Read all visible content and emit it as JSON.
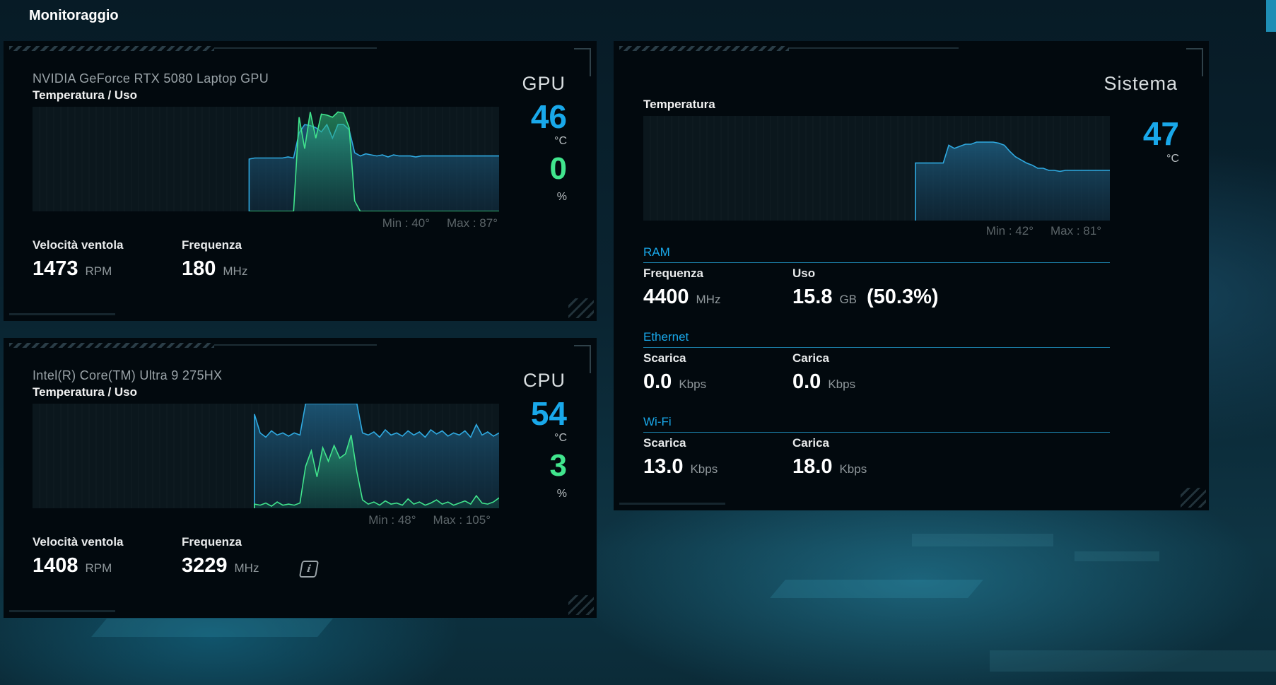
{
  "page": {
    "title": "Monitoraggio"
  },
  "colors": {
    "accent_blue": "#19a8ea",
    "accent_green": "#41e58d",
    "panel_bg": "#02090e"
  },
  "gpu": {
    "name": "NVIDIA GeForce RTX 5080 Laptop GPU",
    "chart_label": "Temperatura / Uso",
    "label": "GPU",
    "temperature": "46",
    "temp_unit": "°C",
    "usage": "0",
    "usage_unit": "%",
    "min": "Min : 40°",
    "max": "Max : 87°",
    "fan_label": "Velocità ventola",
    "fan_value": "1473",
    "fan_unit": "RPM",
    "freq_label": "Frequenza",
    "freq_value": "180",
    "freq_unit": "MHz"
  },
  "cpu": {
    "name": "Intel(R) Core(TM) Ultra 9 275HX",
    "chart_label": "Temperatura / Uso",
    "label": "CPU",
    "temperature": "54",
    "temp_unit": "°C",
    "usage": "3",
    "usage_unit": "%",
    "min": "Min : 48°",
    "max": "Max : 105°",
    "fan_label": "Velocità ventola",
    "fan_value": "1408",
    "fan_unit": "RPM",
    "freq_label": "Frequenza",
    "freq_value": "3229",
    "freq_unit": "MHz",
    "info_icon": "info-icon"
  },
  "system": {
    "label": "Sistema",
    "chart_label": "Temperatura",
    "temperature": "47",
    "temp_unit": "°C",
    "min": "Min : 42°",
    "max": "Max : 81°",
    "ram": {
      "title": "RAM",
      "freq_label": "Frequenza",
      "freq_value": "4400",
      "freq_unit": "MHz",
      "use_label": "Uso",
      "use_value": "15.8",
      "use_unit": "GB",
      "use_percent": "(50.3%)"
    },
    "ethernet": {
      "title": "Ethernet",
      "down_label": "Scarica",
      "down_value": "0.0",
      "down_unit": "Kbps",
      "up_label": "Carica",
      "up_value": "0.0",
      "up_unit": "Kbps"
    },
    "wifi": {
      "title": "Wi-Fi",
      "down_label": "Scarica",
      "down_value": "13.0",
      "down_unit": "Kbps",
      "up_label": "Carica",
      "up_value": "18.0",
      "up_unit": "Kbps"
    }
  },
  "chart_data": [
    {
      "type": "area",
      "series": [
        {
          "values": [
            null,
            null,
            null,
            null,
            null,
            null,
            null,
            null,
            null,
            null,
            null,
            null,
            null,
            null,
            null,
            null,
            null,
            null,
            null,
            null,
            null,
            null,
            null,
            null,
            null,
            null,
            null,
            null,
            null,
            null,
            null,
            null,
            null,
            null,
            null,
            null,
            null,
            null,
            null,
            50,
            51,
            51,
            51,
            51,
            51,
            51,
            52,
            51,
            75,
            83,
            82,
            80,
            76,
            83,
            70,
            83,
            83,
            78,
            56,
            53,
            55,
            54,
            53,
            54,
            52,
            54,
            53,
            53,
            53,
            52,
            53,
            53,
            53,
            53,
            53,
            53,
            53,
            53,
            53,
            53,
            53,
            53,
            53,
            53,
            53
          ]
        },
        {
          "values": [
            null,
            null,
            null,
            null,
            null,
            null,
            null,
            null,
            null,
            null,
            null,
            null,
            null,
            null,
            null,
            null,
            null,
            null,
            null,
            null,
            null,
            null,
            null,
            null,
            null,
            null,
            null,
            null,
            null,
            null,
            null,
            null,
            null,
            null,
            null,
            null,
            null,
            null,
            null,
            0,
            0,
            0,
            0,
            0,
            0,
            0,
            0,
            0,
            90,
            60,
            95,
            70,
            93,
            92,
            90,
            95,
            94,
            80,
            10,
            0,
            0,
            0,
            0,
            0,
            0,
            0,
            0,
            0,
            0,
            0,
            0,
            0,
            0,
            0,
            0,
            0,
            0,
            0,
            0,
            0,
            0,
            0,
            0,
            0,
            0
          ]
        }
      ]
    },
    {
      "type": "area",
      "series": [
        {
          "values": [
            null,
            null,
            null,
            null,
            null,
            null,
            null,
            null,
            null,
            null,
            null,
            null,
            null,
            null,
            null,
            null,
            null,
            null,
            null,
            null,
            null,
            null,
            null,
            null,
            null,
            null,
            null,
            null,
            null,
            null,
            null,
            null,
            null,
            null,
            null,
            null,
            null,
            null,
            null,
            90,
            72,
            68,
            74,
            70,
            72,
            69,
            72,
            70,
            100,
            100,
            100,
            100,
            100,
            100,
            100,
            100,
            100,
            100,
            72,
            70,
            73,
            68,
            75,
            70,
            72,
            69,
            74,
            70,
            73,
            68,
            75,
            71,
            74,
            69,
            72,
            70,
            74,
            68,
            80,
            70,
            73,
            69,
            72
          ]
        },
        {
          "values": [
            null,
            null,
            null,
            null,
            null,
            null,
            null,
            null,
            null,
            null,
            null,
            null,
            null,
            null,
            null,
            null,
            null,
            null,
            null,
            null,
            null,
            null,
            null,
            null,
            null,
            null,
            null,
            null,
            null,
            null,
            null,
            null,
            null,
            null,
            null,
            null,
            null,
            null,
            null,
            4,
            3,
            5,
            2,
            6,
            3,
            4,
            3,
            5,
            40,
            55,
            30,
            58,
            45,
            60,
            48,
            52,
            70,
            35,
            8,
            4,
            6,
            3,
            7,
            4,
            5,
            3,
            9,
            4,
            6,
            3,
            5,
            8,
            4,
            6,
            3,
            5,
            7,
            4,
            12,
            5,
            4,
            6,
            10
          ]
        }
      ]
    },
    {
      "type": "area",
      "series": [
        {
          "values": [
            null,
            null,
            null,
            null,
            null,
            null,
            null,
            null,
            null,
            null,
            null,
            null,
            null,
            null,
            null,
            null,
            null,
            null,
            null,
            null,
            null,
            null,
            null,
            null,
            null,
            null,
            null,
            null,
            null,
            null,
            null,
            null,
            null,
            null,
            null,
            null,
            null,
            null,
            null,
            null,
            null,
            null,
            null,
            null,
            null,
            null,
            null,
            null,
            null,
            55,
            55,
            55,
            55,
            55,
            55,
            72,
            69,
            71,
            73,
            73,
            75,
            75,
            75,
            75,
            74,
            72,
            66,
            61,
            58,
            55,
            53,
            50,
            50,
            48,
            48,
            47,
            48,
            48,
            48,
            48,
            48,
            48,
            48,
            48,
            48
          ]
        }
      ]
    }
  ]
}
